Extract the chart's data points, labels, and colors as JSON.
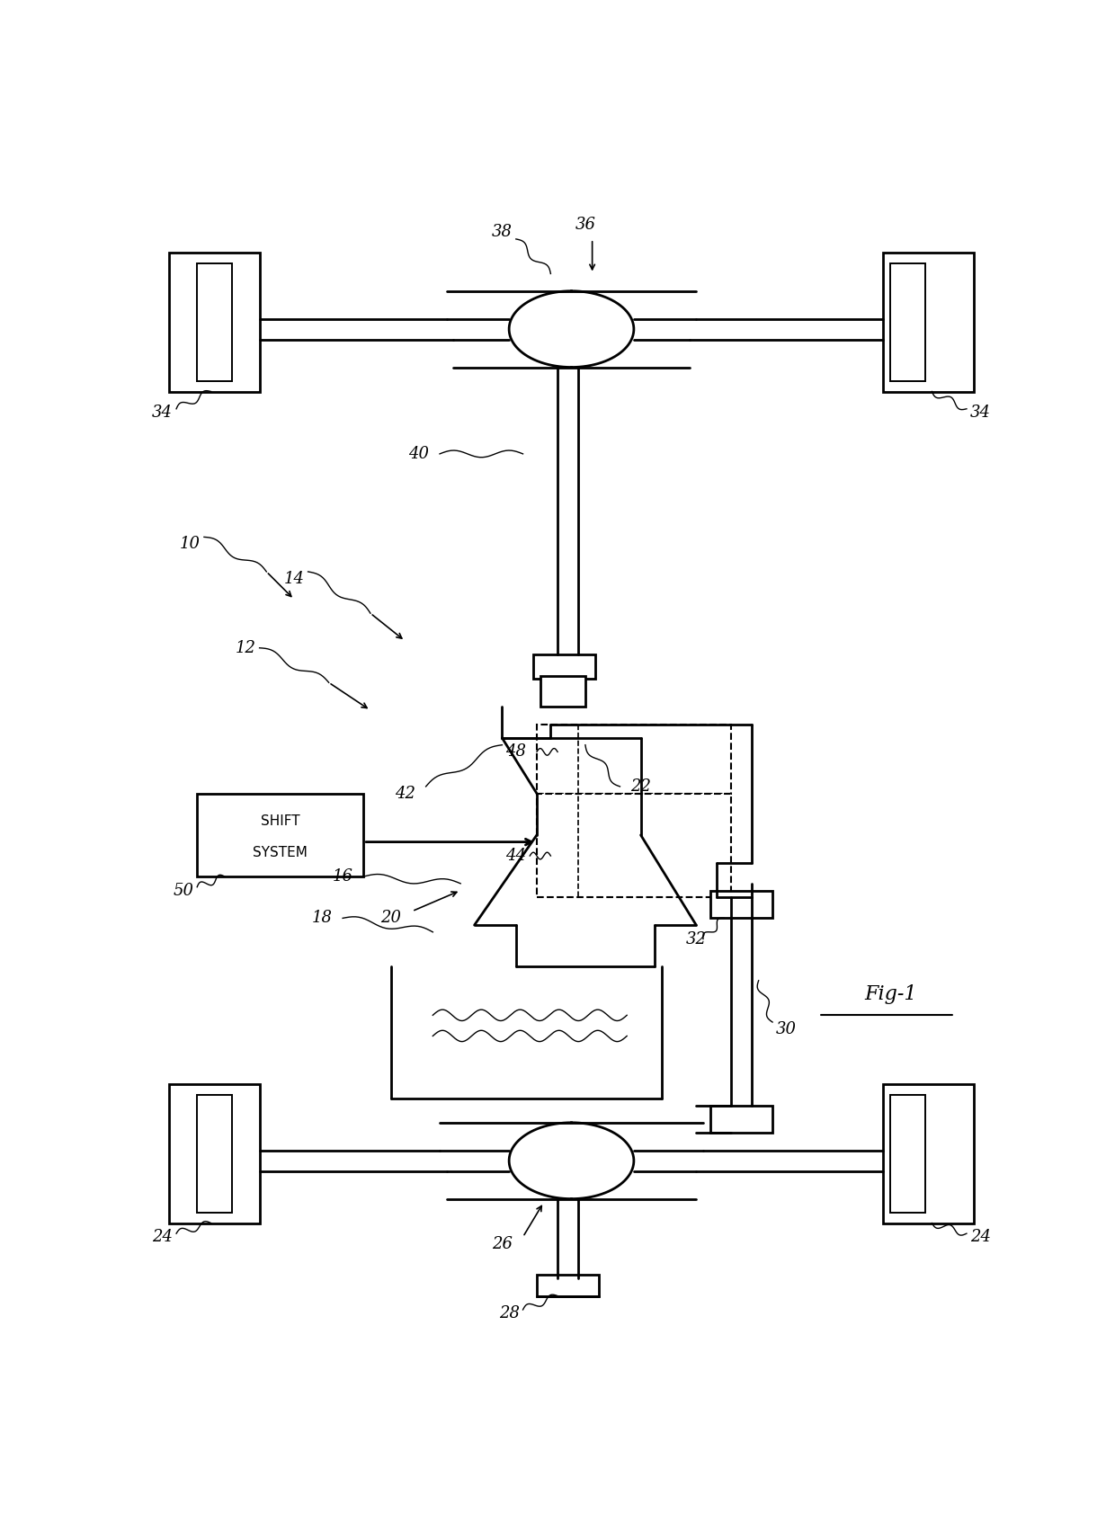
{
  "bg_color": "#ffffff",
  "line_color": "#000000",
  "lw_main": 2.0,
  "lw_thin": 1.4,
  "label_fontsize": 13,
  "fig_label": "Fig-1",
  "figsize": [
    12.4,
    17.02
  ],
  "dpi": 100,
  "xlim": [
    0,
    124
  ],
  "ylim": [
    0,
    170
  ]
}
